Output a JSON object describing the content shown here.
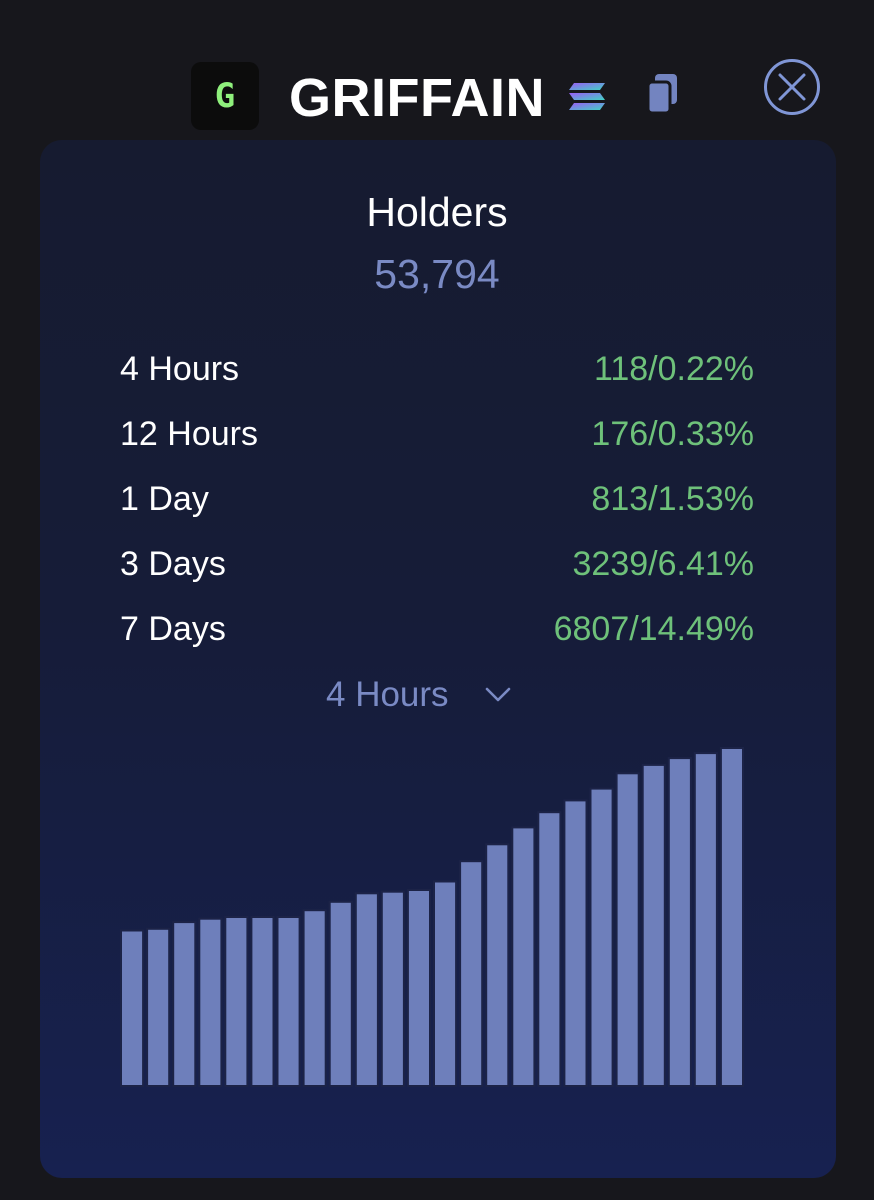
{
  "header": {
    "logo_letter": "G",
    "token_name": "GRIFFAIN",
    "chain_icon": "solana-icon",
    "copy_icon": "copy-icon",
    "close_icon": "close-icon"
  },
  "holders": {
    "label": "Holders",
    "value": "53,794"
  },
  "stats": [
    {
      "label": "4 Hours",
      "value": "118/0.22%"
    },
    {
      "label": "12 Hours",
      "value": "176/0.33%"
    },
    {
      "label": "1 Day",
      "value": "813/1.53%"
    },
    {
      "label": "3 Days",
      "value": "3239/6.41%"
    },
    {
      "label": "7 Days",
      "value": "6807/14.49%"
    }
  ],
  "period_select": {
    "selected": "4 Hours"
  },
  "colors": {
    "positive": "#6ec17a",
    "accent": "#7a8ac4",
    "bar_fill": "#6e7fbb",
    "bar_stroke": "#1c2347"
  },
  "chart_data": {
    "type": "bar",
    "values": [
      46,
      46.5,
      48.5,
      49.5,
      50,
      50,
      50,
      52,
      54.5,
      57,
      57.5,
      58,
      60.5,
      66.5,
      71.5,
      76.5,
      81,
      84.5,
      88,
      92.5,
      95,
      97,
      98.5,
      100
    ],
    "ylim": [
      0,
      100
    ],
    "grid": false,
    "title": "",
    "xlabel": "",
    "ylabel": ""
  }
}
